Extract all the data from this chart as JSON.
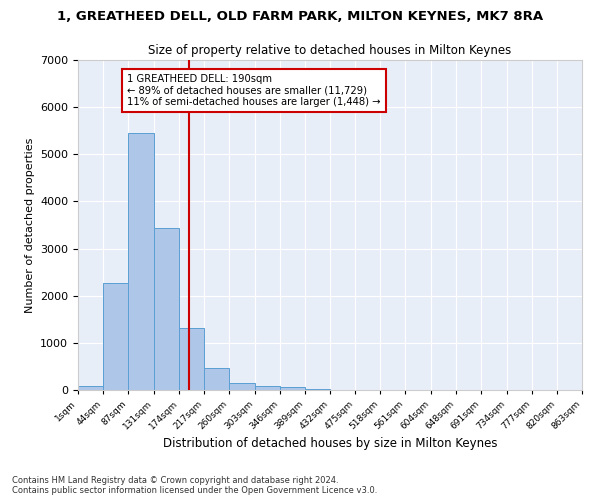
{
  "title": "1, GREATHEED DELL, OLD FARM PARK, MILTON KEYNES, MK7 8RA",
  "subtitle": "Size of property relative to detached houses in Milton Keynes",
  "xlabel": "Distribution of detached houses by size in Milton Keynes",
  "ylabel": "Number of detached properties",
  "bar_color": "#aec6e8",
  "bar_edge_color": "#5a9fd4",
  "background_color": "#e8eef8",
  "grid_color": "#ffffff",
  "vline_x": 190,
  "vline_color": "#cc0000",
  "annotation_box_color": "#cc0000",
  "annotation_lines": [
    "1 GREATHEED DELL: 190sqm",
    "← 89% of detached houses are smaller (11,729)",
    "11% of semi-detached houses are larger (1,448) →"
  ],
  "bin_edges": [
    1,
    44,
    87,
    131,
    174,
    217,
    260,
    303,
    346,
    389,
    432,
    475,
    518,
    561,
    604,
    648,
    691,
    734,
    777,
    820,
    863
  ],
  "bar_heights": [
    75,
    2280,
    5460,
    3440,
    1310,
    460,
    155,
    90,
    55,
    30,
    10,
    5,
    2,
    1,
    0,
    0,
    0,
    0,
    0,
    0
  ],
  "ylim": [
    0,
    7000
  ],
  "yticks": [
    0,
    1000,
    2000,
    3000,
    4000,
    5000,
    6000,
    7000
  ],
  "footnote": "Contains HM Land Registry data © Crown copyright and database right 2024.\nContains public sector information licensed under the Open Government Licence v3.0.",
  "figsize": [
    6.0,
    5.0
  ],
  "dpi": 100
}
